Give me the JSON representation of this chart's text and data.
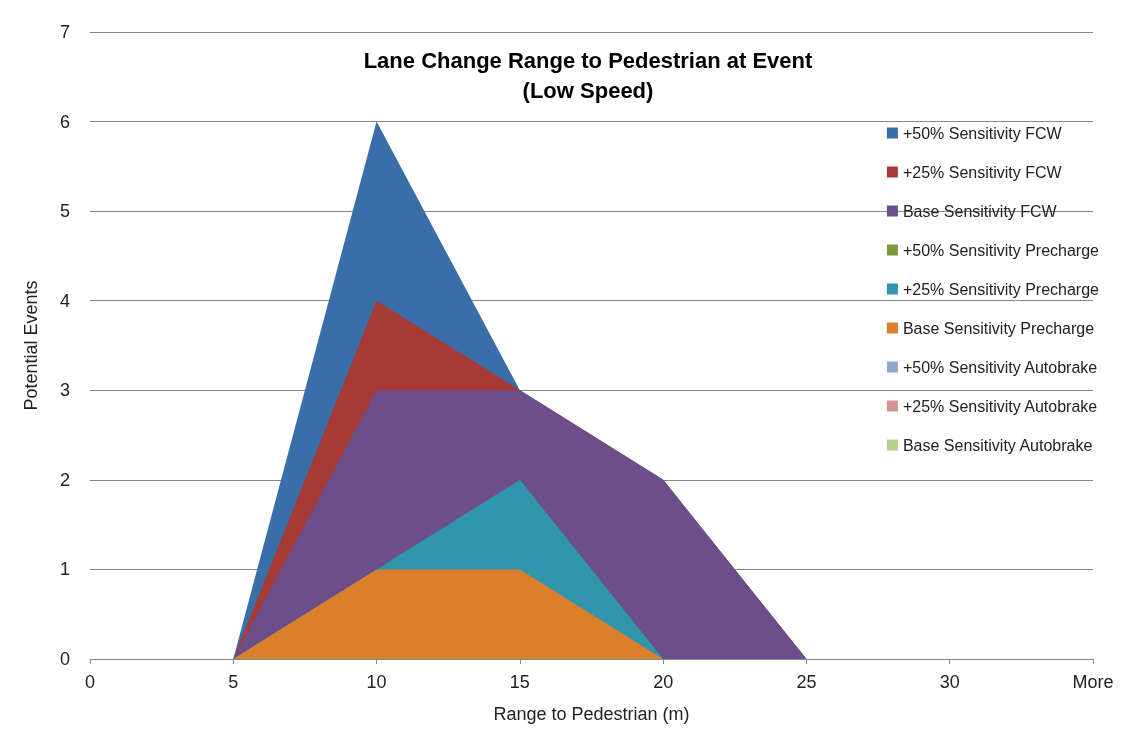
{
  "chart_data": {
    "type": "area",
    "title": "Lane Change Range to Pedestrian at Event\n(Low Speed)",
    "xlabel": "Range to Pedestrian (m)",
    "ylabel": "Potential Events",
    "categories": [
      "0",
      "5",
      "10",
      "15",
      "20",
      "25",
      "30",
      "More"
    ],
    "series": [
      {
        "name": "+50% Sensitivity FCW",
        "color": "#3a6ea8",
        "values": [
          0,
          0,
          6,
          3,
          2,
          0,
          0,
          0
        ]
      },
      {
        "name": "+25% Sensitivity FCW",
        "color": "#a83a36",
        "values": [
          0,
          0,
          4,
          3,
          2,
          0,
          0,
          0
        ]
      },
      {
        "name": "Base Sensitivity FCW",
        "color": "#6b4e8a",
        "values": [
          0,
          0,
          3,
          3,
          2,
          0,
          0,
          0
        ]
      },
      {
        "name": "+50% Sensitivity Precharge",
        "color": "#7a9a3c",
        "values": [
          null,
          null,
          null,
          null,
          null,
          null,
          null,
          null
        ]
      },
      {
        "name": "+25% Sensitivity Precharge",
        "color": "#2f96ad",
        "values": [
          0,
          0,
          1,
          2,
          0,
          0,
          0,
          0
        ]
      },
      {
        "name": "Base Sensitivity Precharge",
        "color": "#db7f2c",
        "values": [
          0,
          0,
          1,
          1,
          0,
          0,
          0,
          0
        ]
      },
      {
        "name": "+50% Sensitivity Autobrake",
        "color": "#8ea8cf",
        "values": [
          null,
          null,
          null,
          null,
          null,
          null,
          null,
          null
        ]
      },
      {
        "name": "+25% Sensitivity Autobrake",
        "color": "#d49391",
        "values": [
          null,
          null,
          null,
          null,
          null,
          null,
          null,
          null
        ]
      },
      {
        "name": "Base Sensitivity Autobrake",
        "color": "#b4cf8e",
        "values": [
          null,
          null,
          null,
          null,
          null,
          null,
          null,
          null
        ]
      }
    ],
    "ylim": [
      0,
      7
    ],
    "yticks": [
      0,
      1,
      2,
      3,
      4,
      5,
      6,
      7
    ],
    "grid": "y",
    "legend": "right"
  }
}
